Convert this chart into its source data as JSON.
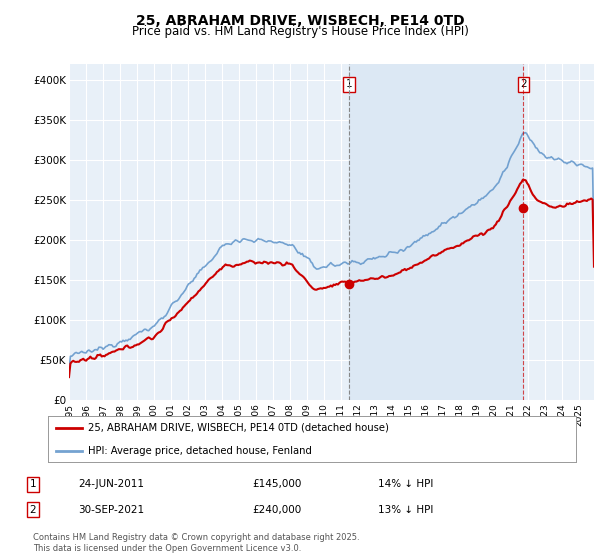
{
  "title": "25, ABRAHAM DRIVE, WISBECH, PE14 0TD",
  "subtitle": "Price paid vs. HM Land Registry's House Price Index (HPI)",
  "ylim": [
    0,
    420000
  ],
  "yticks": [
    0,
    50000,
    100000,
    150000,
    200000,
    250000,
    300000,
    350000,
    400000
  ],
  "ytick_labels": [
    "£0",
    "£50K",
    "£100K",
    "£150K",
    "£200K",
    "£250K",
    "£300K",
    "£350K",
    "£400K"
  ],
  "background_color": "#ffffff",
  "plot_background": "#e8f0f8",
  "grid_color": "#ffffff",
  "red_line_color": "#cc0000",
  "blue_line_color": "#6699cc",
  "shade_color": "#dce8f5",
  "legend_label_red": "25, ABRAHAM DRIVE, WISBECH, PE14 0TD (detached house)",
  "legend_label_blue": "HPI: Average price, detached house, Fenland",
  "annotation1_date": "24-JUN-2011",
  "annotation1_price": "£145,000",
  "annotation1_hpi": "14% ↓ HPI",
  "annotation2_date": "30-SEP-2021",
  "annotation2_price": "£240,000",
  "annotation2_hpi": "13% ↓ HPI",
  "footer": "Contains HM Land Registry data © Crown copyright and database right 2025.\nThis data is licensed under the Open Government Licence v3.0.",
  "title_fontsize": 10,
  "subtitle_fontsize": 8.5,
  "axis_fontsize": 7.5,
  "t1_x": 2011.48,
  "t1_y": 145000,
  "t2_x": 2021.75,
  "t2_y": 240000,
  "xlim_left": 1995.0,
  "xlim_right": 2025.9
}
